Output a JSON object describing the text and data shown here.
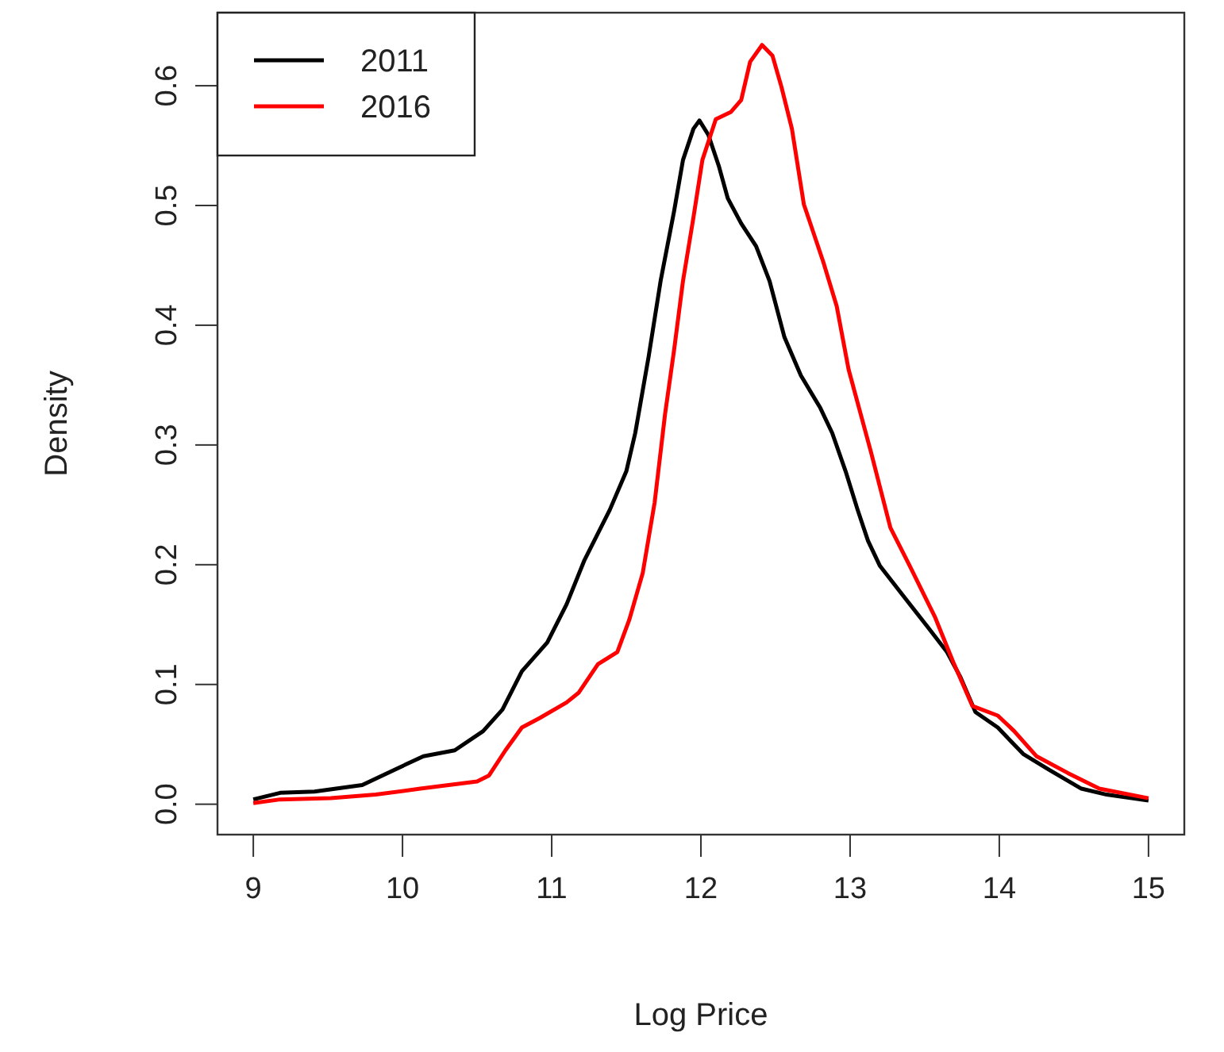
{
  "chart_data": {
    "type": "line",
    "xlabel": "Log Price",
    "ylabel": "Density",
    "xlim": [
      8.76,
      15.24
    ],
    "ylim": [
      -0.0254,
      0.661
    ],
    "xticks": [
      9,
      10,
      11,
      12,
      13,
      14,
      15
    ],
    "yticks": [
      {
        "value": 0,
        "label": "0.0"
      },
      0.1,
      0.2,
      0.3,
      0.4,
      0.5,
      0.6
    ],
    "grid": false,
    "legend": "top left",
    "line_style": "solid",
    "marker": "none",
    "series": [
      {
        "name": "2011",
        "color": "#000000",
        "x": [
          9.0,
          9.18,
          9.41,
          9.73,
          9.95,
          10.14,
          10.35,
          10.54,
          10.67,
          10.8,
          10.97,
          11.1,
          11.22,
          11.39,
          11.5,
          11.56,
          11.65,
          11.73,
          11.82,
          11.88,
          11.95,
          11.99,
          12.05,
          12.12,
          12.18,
          12.27,
          12.37,
          12.46,
          12.56,
          12.67,
          12.8,
          12.88,
          12.97,
          13.05,
          13.12,
          13.2,
          13.35,
          13.52,
          13.65,
          13.74,
          13.84,
          13.99,
          14.16,
          14.33,
          14.55,
          14.72,
          15.0
        ],
        "values": [
          0.004,
          0.0095,
          0.0106,
          0.016,
          0.029,
          0.04,
          0.045,
          0.061,
          0.079,
          0.111,
          0.135,
          0.167,
          0.204,
          0.246,
          0.278,
          0.31,
          0.374,
          0.437,
          0.495,
          0.538,
          0.564,
          0.571,
          0.559,
          0.533,
          0.506,
          0.485,
          0.466,
          0.437,
          0.39,
          0.358,
          0.331,
          0.31,
          0.278,
          0.246,
          0.22,
          0.199,
          0.175,
          0.148,
          0.127,
          0.106,
          0.077,
          0.064,
          0.042,
          0.029,
          0.013,
          0.008,
          0.003
        ]
      },
      {
        "name": "2016",
        "color": "#ff0000",
        "x": [
          9.0,
          9.18,
          9.52,
          9.82,
          10.12,
          10.5,
          10.58,
          10.69,
          10.8,
          10.92,
          11.1,
          11.18,
          11.31,
          11.44,
          11.52,
          11.61,
          11.69,
          11.76,
          11.82,
          11.88,
          11.95,
          12.01,
          12.1,
          12.2,
          12.27,
          12.33,
          12.41,
          12.48,
          12.54,
          12.61,
          12.69,
          12.82,
          12.91,
          12.99,
          13.14,
          13.27,
          13.4,
          13.57,
          13.69,
          13.82,
          13.99,
          14.1,
          14.25,
          14.46,
          14.67,
          15.0
        ],
        "values": [
          0.001,
          0.004,
          0.005,
          0.008,
          0.013,
          0.019,
          0.024,
          0.045,
          0.064,
          0.072,
          0.085,
          0.093,
          0.117,
          0.127,
          0.154,
          0.193,
          0.252,
          0.326,
          0.379,
          0.437,
          0.49,
          0.538,
          0.572,
          0.578,
          0.588,
          0.62,
          0.634,
          0.625,
          0.599,
          0.564,
          0.501,
          0.453,
          0.416,
          0.363,
          0.294,
          0.231,
          0.199,
          0.156,
          0.119,
          0.082,
          0.074,
          0.061,
          0.04,
          0.026,
          0.013,
          0.005
        ]
      }
    ]
  }
}
